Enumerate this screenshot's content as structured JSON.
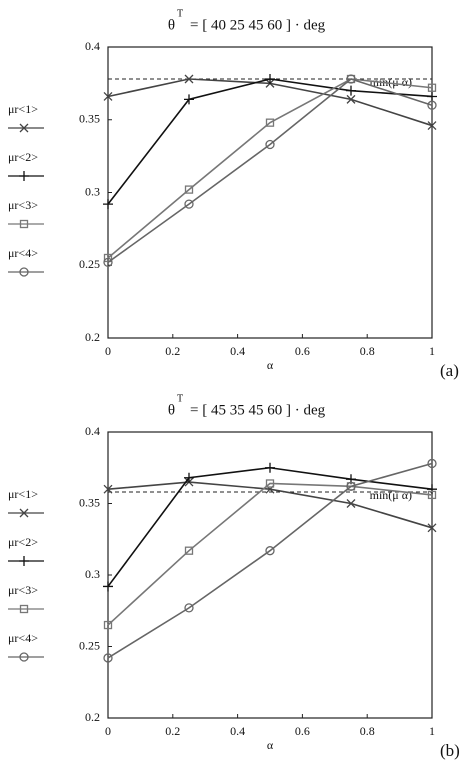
{
  "chart_data": [
    {
      "type": "line",
      "title_symbol": "θ",
      "title_superscript": "T",
      "title_rest": "= [ 40  25  45  60 ] · deg",
      "x_label": "α",
      "panel_label": "(a)",
      "x": [
        0,
        0.25,
        0.5,
        0.75,
        1
      ],
      "xlim": [
        0,
        1
      ],
      "xticks": [
        0,
        0.2,
        0.4,
        0.6,
        0.8,
        1
      ],
      "ylim": [
        0.2,
        0.4
      ],
      "yticks": [
        0.2,
        0.25,
        0.3,
        0.35,
        0.4
      ],
      "reference_line": 0.378,
      "reference_label": "min(μ α)",
      "series": [
        {
          "name": "μr<1>",
          "color": "#444444",
          "marker": "x",
          "values": [
            0.366,
            0.378,
            0.375,
            0.364,
            0.346
          ]
        },
        {
          "name": "μr<2>",
          "color": "#111111",
          "marker": "plus",
          "values": [
            0.292,
            0.364,
            0.378,
            0.37,
            0.366
          ]
        },
        {
          "name": "μr<3>",
          "color": "#777777",
          "marker": "square",
          "values": [
            0.255,
            0.302,
            0.348,
            0.378,
            0.372
          ]
        },
        {
          "name": "μr<4>",
          "color": "#666666",
          "marker": "circle",
          "values": [
            0.252,
            0.292,
            0.333,
            0.378,
            0.36
          ]
        }
      ]
    },
    {
      "type": "line",
      "title_symbol": "θ",
      "title_superscript": "T",
      "title_rest": "= [ 45  35  45  60 ] · deg",
      "x_label": "α",
      "panel_label": "(b)",
      "x": [
        0,
        0.25,
        0.5,
        0.75,
        1
      ],
      "xlim": [
        0,
        1
      ],
      "xticks": [
        0,
        0.2,
        0.4,
        0.6,
        0.8,
        1
      ],
      "ylim": [
        0.2,
        0.4
      ],
      "yticks": [
        0.2,
        0.25,
        0.3,
        0.35,
        0.4
      ],
      "reference_line": 0.358,
      "reference_label": "min(μ α)",
      "series": [
        {
          "name": "μr<1>",
          "color": "#444444",
          "marker": "x",
          "values": [
            0.36,
            0.365,
            0.36,
            0.35,
            0.333
          ]
        },
        {
          "name": "μr<2>",
          "color": "#111111",
          "marker": "plus",
          "values": [
            0.292,
            0.368,
            0.375,
            0.367,
            0.36
          ]
        },
        {
          "name": "μr<3>",
          "color": "#777777",
          "marker": "square",
          "values": [
            0.265,
            0.317,
            0.364,
            0.362,
            0.356
          ]
        },
        {
          "name": "μr<4>",
          "color": "#666666",
          "marker": "circle",
          "values": [
            0.242,
            0.277,
            0.317,
            0.362,
            0.378
          ]
        }
      ]
    }
  ]
}
